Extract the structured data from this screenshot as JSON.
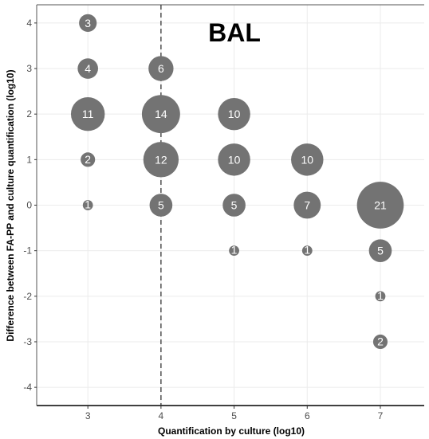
{
  "chart_data": {
    "type": "scatter",
    "title": "BAL",
    "xlabel": "Quantification by culture (log10)",
    "ylabel": "Difference between FA-PP and culture quantification (log10)",
    "xlim": [
      2.3,
      7.6
    ],
    "ylim": [
      -4.4,
      4.4
    ],
    "x_ticks": [
      3,
      4,
      5,
      6,
      7
    ],
    "y_ticks": [
      -4,
      -3,
      -2,
      -1,
      0,
      1,
      2,
      3,
      4
    ],
    "reference_line": {
      "axis": "x",
      "value": 4,
      "style": "dashed"
    },
    "grid": true,
    "points": [
      {
        "x": 3,
        "y": 4,
        "n": 3
      },
      {
        "x": 3,
        "y": 3,
        "n": 4
      },
      {
        "x": 3,
        "y": 2,
        "n": 11
      },
      {
        "x": 3,
        "y": 1,
        "n": 2
      },
      {
        "x": 3,
        "y": 0,
        "n": 1
      },
      {
        "x": 4,
        "y": 3,
        "n": 6
      },
      {
        "x": 4,
        "y": 2,
        "n": 14
      },
      {
        "x": 4,
        "y": 1,
        "n": 12
      },
      {
        "x": 4,
        "y": 0,
        "n": 5
      },
      {
        "x": 5,
        "y": 2,
        "n": 10
      },
      {
        "x": 5,
        "y": 1,
        "n": 10
      },
      {
        "x": 5,
        "y": 0,
        "n": 5
      },
      {
        "x": 5,
        "y": -1,
        "n": 1
      },
      {
        "x": 6,
        "y": 1,
        "n": 10
      },
      {
        "x": 6,
        "y": 0,
        "n": 7
      },
      {
        "x": 6,
        "y": -1,
        "n": 1
      },
      {
        "x": 7,
        "y": 0,
        "n": 21
      },
      {
        "x": 7,
        "y": -1,
        "n": 5
      },
      {
        "x": 7,
        "y": -2,
        "n": 1
      },
      {
        "x": 7,
        "y": -3,
        "n": 2
      }
    ]
  }
}
